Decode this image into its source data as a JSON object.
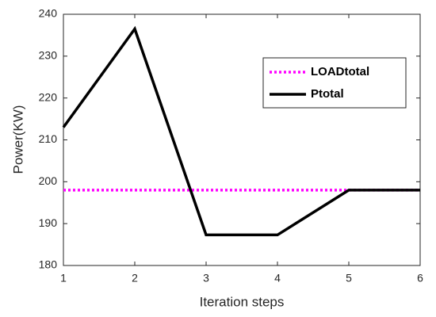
{
  "chart_data": {
    "type": "line",
    "x": [
      1,
      2,
      3,
      4,
      5,
      6
    ],
    "series": [
      {
        "name": "LOADtotal",
        "color": "#ff00ff",
        "dash": "dotted",
        "values": [
          198,
          198,
          198,
          198,
          198,
          198
        ]
      },
      {
        "name": "Ptotal",
        "color": "#000000",
        "dash": "solid",
        "values": [
          213,
          236.5,
          187.3,
          187.3,
          198,
          198
        ]
      }
    ],
    "xlabel": "Iteration steps",
    "ylabel": "Power(KW)",
    "xlim": [
      1,
      6
    ],
    "xticks": [
      1,
      2,
      3,
      4,
      5,
      6
    ],
    "ylim": [
      180,
      240
    ],
    "yticks": [
      180,
      190,
      200,
      210,
      220,
      230,
      240
    ],
    "grid": false,
    "legend": "upper right"
  }
}
